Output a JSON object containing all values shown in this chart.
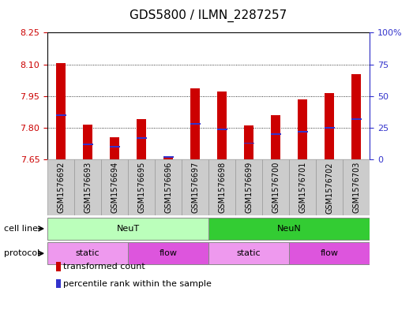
{
  "title": "GDS5800 / ILMN_2287257",
  "samples": [
    "GSM1576692",
    "GSM1576693",
    "GSM1576694",
    "GSM1576695",
    "GSM1576696",
    "GSM1576697",
    "GSM1576698",
    "GSM1576699",
    "GSM1576700",
    "GSM1576701",
    "GSM1576702",
    "GSM1576703"
  ],
  "transformed_count": [
    8.105,
    7.815,
    7.755,
    7.84,
    7.66,
    7.985,
    7.97,
    7.81,
    7.86,
    7.935,
    7.965,
    8.055
  ],
  "percentile_rank": [
    35,
    12,
    10,
    17,
    2,
    28,
    24,
    13,
    20,
    22,
    25,
    32
  ],
  "ylim_left": [
    7.65,
    8.25
  ],
  "ylim_right": [
    0,
    100
  ],
  "yticks_left": [
    7.65,
    7.8,
    7.95,
    8.1,
    8.25
  ],
  "yticks_right": [
    0,
    25,
    50,
    75,
    100
  ],
  "ytick_labels_right": [
    "0",
    "25",
    "50",
    "75",
    "100%"
  ],
  "bar_color": "#cc0000",
  "blue_color": "#3333cc",
  "bar_base": 7.65,
  "cell_line_groups": [
    {
      "label": "NeuT",
      "start": 0,
      "end": 6,
      "color": "#bbffbb"
    },
    {
      "label": "NeuN",
      "start": 6,
      "end": 12,
      "color": "#33cc33"
    }
  ],
  "protocol_groups": [
    {
      "label": "static",
      "start": 0,
      "end": 3,
      "color": "#ee99ee"
    },
    {
      "label": "flow",
      "start": 3,
      "end": 6,
      "color": "#dd55dd"
    },
    {
      "label": "static",
      "start": 6,
      "end": 9,
      "color": "#ee99ee"
    },
    {
      "label": "flow",
      "start": 9,
      "end": 12,
      "color": "#dd55dd"
    }
  ],
  "legend_items": [
    {
      "label": "transformed count",
      "color": "#cc0000"
    },
    {
      "label": "percentile rank within the sample",
      "color": "#3333cc"
    }
  ],
  "grid_color": "#000000",
  "axis_color": "#cc0000",
  "right_axis_color": "#3333cc",
  "bg_color": "#ffffff",
  "col_bg_color": "#cccccc",
  "bar_width": 0.35,
  "tick_label_fontsize": 7,
  "title_fontsize": 11
}
